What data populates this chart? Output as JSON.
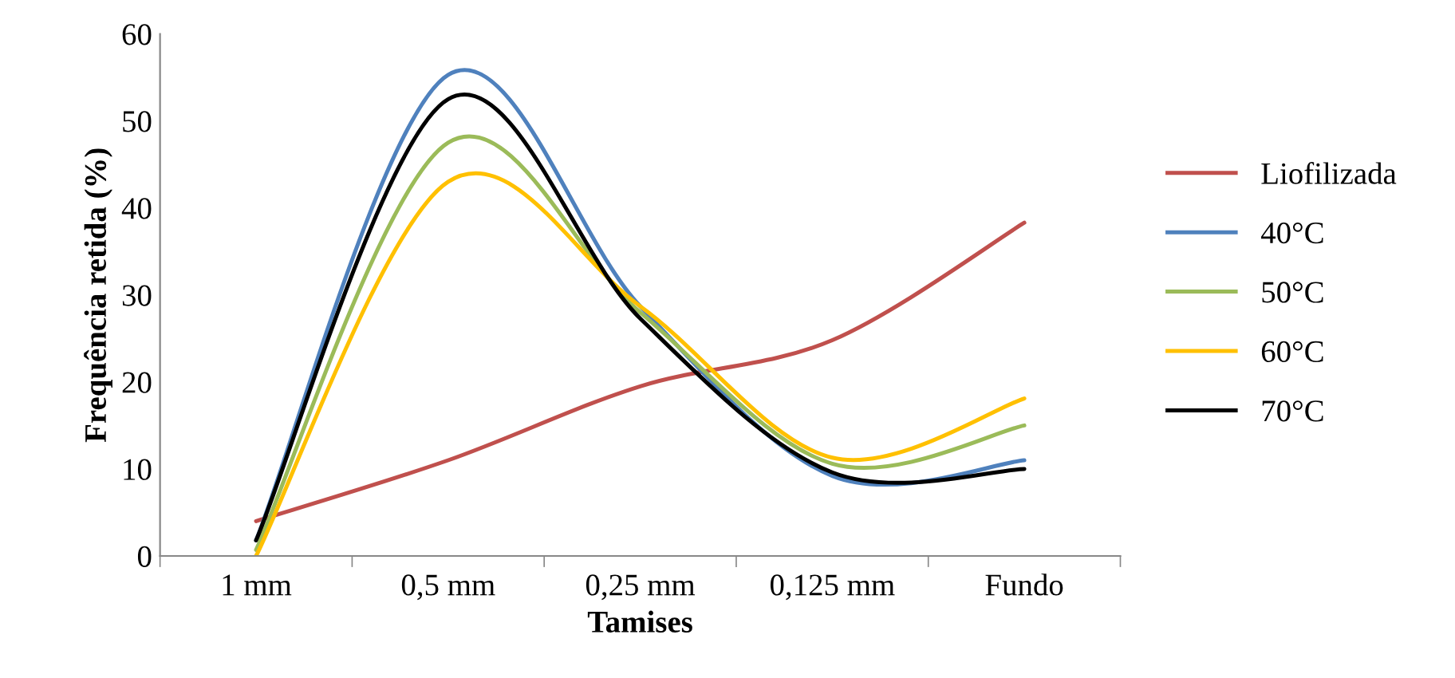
{
  "chart_data": {
    "type": "line",
    "xlabel": "Tamises",
    "ylabel": "Frequência retida (%)",
    "categories": [
      "1 mm",
      "0,5 mm",
      "0,25 mm",
      "0,125 mm",
      "Fundo"
    ],
    "series": [
      {
        "name": "Liofilizada",
        "color": "#c0504d",
        "values": [
          4.0,
          11.0,
          19.5,
          24.8,
          38.3
        ]
      },
      {
        "name": "40°C",
        "color": "#4f81bd",
        "values": [
          1.8,
          55.3,
          28.7,
          9.2,
          11.0
        ]
      },
      {
        "name": "50°C",
        "color": "#9bbb59",
        "values": [
          0.7,
          47.5,
          28.0,
          10.6,
          15.0
        ]
      },
      {
        "name": "60°C",
        "color": "#ffc000",
        "values": [
          0.0,
          43.0,
          28.7,
          11.3,
          18.1
        ]
      },
      {
        "name": "70°C",
        "color": "#000000",
        "values": [
          1.8,
          52.5,
          27.3,
          9.6,
          10.0
        ]
      }
    ],
    "ylim": [
      0,
      60
    ],
    "yticks": [
      0,
      10,
      20,
      30,
      40,
      50,
      60
    ],
    "grid": false,
    "legend": "right",
    "marker": "none",
    "line_style": "solid"
  }
}
